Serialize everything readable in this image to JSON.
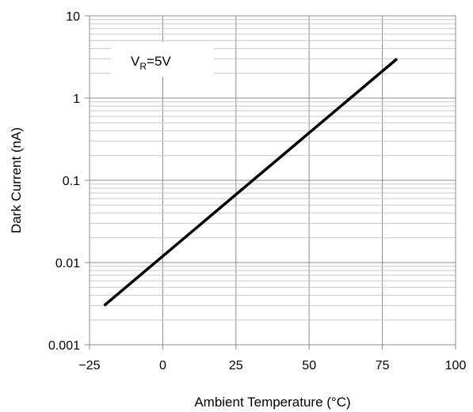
{
  "chart_data": {
    "type": "line",
    "xlabel": "Ambient Temperature (°C)",
    "ylabel": "Dark Current (nA)",
    "xlim": [
      -25,
      100
    ],
    "ylim": [
      0.001,
      10
    ],
    "y_scale": "log",
    "x_ticks": [
      -25,
      0,
      25,
      50,
      75,
      100
    ],
    "x_tick_labels": [
      "−25",
      "0",
      "25",
      "50",
      "75",
      "100"
    ],
    "y_ticks": [
      0.001,
      0.01,
      0.1,
      1,
      10
    ],
    "y_tick_labels": [
      "0.001",
      "0.01",
      "0.1",
      "1",
      "10"
    ],
    "grid": true,
    "annotation": {
      "text_main": "V",
      "text_sub": "R",
      "text_rest": "=5V"
    },
    "series": [
      {
        "x": [
          -20,
          80
        ],
        "y": [
          0.003,
          3
        ],
        "color": "#000000"
      }
    ]
  }
}
